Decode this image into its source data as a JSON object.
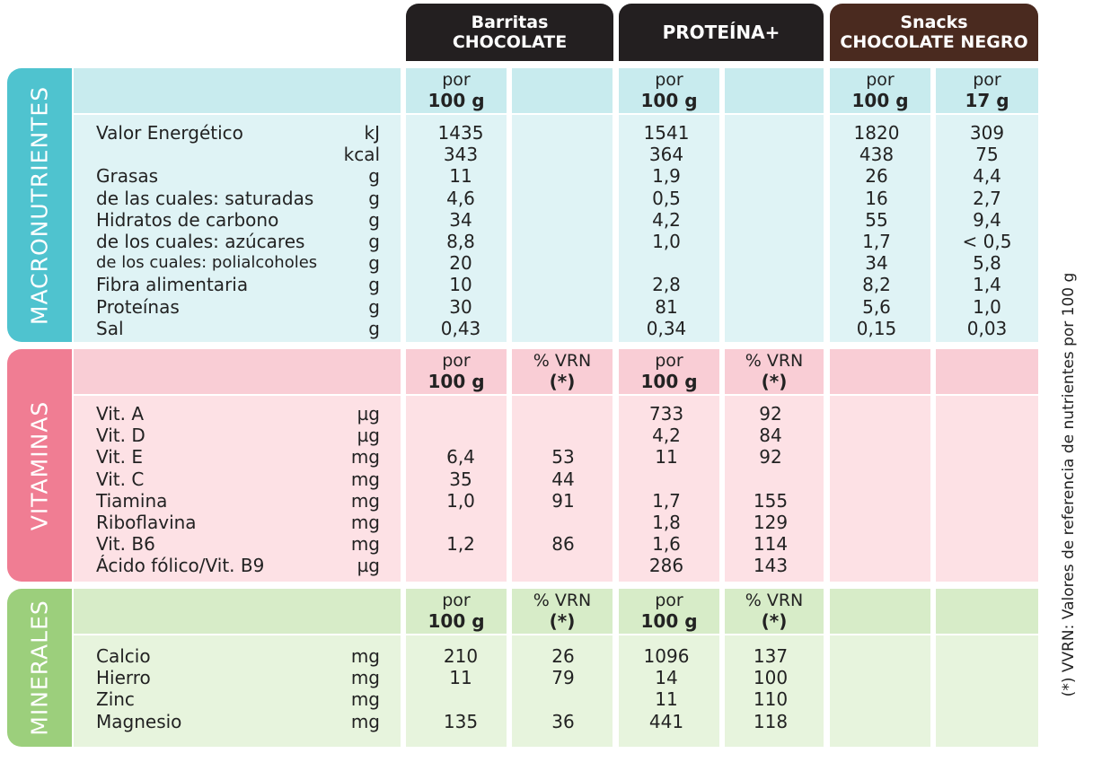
{
  "products": [
    {
      "line1": "Barritas",
      "line2": "CHOCOLATE",
      "color": "#231f20"
    },
    {
      "line1": "PROTEÍNA+",
      "line2": "",
      "color": "#231f20"
    },
    {
      "line1": "Snacks",
      "line2": "CHOCOLATE NEGRO",
      "color": "#4a2a1f"
    }
  ],
  "header_labels": {
    "por": "por",
    "per100": "100 g",
    "per17": "17 g",
    "vrn_top": "% VRN",
    "vrn_bot": "(*)"
  },
  "sections": {
    "macro": {
      "label": "MACRONUTRIENTES",
      "color": "#4fc3cf",
      "rows": [
        {
          "name": "Valor Energético",
          "unit": "kJ",
          "v": [
            "1435",
            "",
            "1541",
            "",
            "1820",
            "309"
          ]
        },
        {
          "name": "",
          "unit": "kcal",
          "v": [
            "343",
            "",
            "364",
            "",
            "438",
            "75"
          ]
        },
        {
          "name": "Grasas",
          "unit": "g",
          "v": [
            "11",
            "",
            "1,9",
            "",
            "26",
            "4,4"
          ]
        },
        {
          "name": " de las cuales: saturadas",
          "unit": "g",
          "v": [
            "4,6",
            "",
            "0,5",
            "",
            "16",
            "2,7"
          ]
        },
        {
          "name": "Hidratos de carbono",
          "unit": "g",
          "v": [
            "34",
            "",
            "4,2",
            "",
            "55",
            "9,4"
          ]
        },
        {
          "name": "  de los cuales: azúcares",
          "unit": "g",
          "v": [
            "8,8",
            "",
            "1,0",
            "",
            "1,7",
            "< 0,5"
          ]
        },
        {
          "name": "  de los cuales: polialcoholes",
          "unit": "g",
          "v": [
            "20",
            "",
            "",
            "",
            "34",
            "5,8"
          ]
        },
        {
          "name": "Fibra alimentaria",
          "unit": "g",
          "v": [
            "10",
            "",
            "2,8",
            "",
            "8,2",
            "1,4"
          ]
        },
        {
          "name": "Proteínas",
          "unit": "g",
          "v": [
            "30",
            "",
            "81",
            "",
            "5,6",
            "1,0"
          ]
        },
        {
          "name": "Sal",
          "unit": "g",
          "v": [
            "0,43",
            "",
            "0,34",
            "",
            "0,15",
            "0,03"
          ]
        }
      ]
    },
    "vit": {
      "label": "VITAMINAS",
      "color": "#f07d93",
      "rows": [
        {
          "name": "Vit. A",
          "unit": "µg",
          "v": [
            "",
            "",
            "733",
            "92",
            "",
            ""
          ]
        },
        {
          "name": "Vit. D",
          "unit": "µg",
          "v": [
            "",
            "",
            "4,2",
            "84",
            "",
            ""
          ]
        },
        {
          "name": "Vit. E",
          "unit": "mg",
          "v": [
            "6,4",
            "53",
            "11",
            "92",
            "",
            ""
          ]
        },
        {
          "name": "Vit. C",
          "unit": "mg",
          "v": [
            "35",
            "44",
            "",
            "",
            "",
            ""
          ]
        },
        {
          "name": "Tiamina",
          "unit": "mg",
          "v": [
            "1,0",
            "91",
            "1,7",
            "155",
            "",
            ""
          ]
        },
        {
          "name": "Riboflavina",
          "unit": "mg",
          "v": [
            "",
            "",
            "1,8",
            "129",
            "",
            ""
          ]
        },
        {
          "name": "Vit. B6",
          "unit": "mg",
          "v": [
            "1,2",
            "86",
            "1,6",
            "114",
            "",
            ""
          ]
        },
        {
          "name": "Ácido fólico/Vit. B9",
          "unit": "µg",
          "v": [
            "",
            "",
            "286",
            "143",
            "",
            ""
          ]
        }
      ]
    },
    "min": {
      "label": "MINERALES",
      "color": "#9ccf7c",
      "rows": [
        {
          "name": "Calcio",
          "unit": "mg",
          "v": [
            "210",
            "26",
            "1096",
            "137",
            "",
            ""
          ]
        },
        {
          "name": "Hierro",
          "unit": "mg",
          "v": [
            "11",
            "79",
            "14",
            "100",
            "",
            ""
          ]
        },
        {
          "name": "Zinc",
          "unit": "mg",
          "v": [
            "",
            "",
            "11",
            "110",
            "",
            ""
          ]
        },
        {
          "name": "Magnesio",
          "unit": "mg",
          "v": [
            "135",
            "36",
            "441",
            "118",
            "",
            ""
          ]
        }
      ]
    }
  },
  "footnote": "(*) VVRN: Valores de referencia de nutrientes por 100 g"
}
